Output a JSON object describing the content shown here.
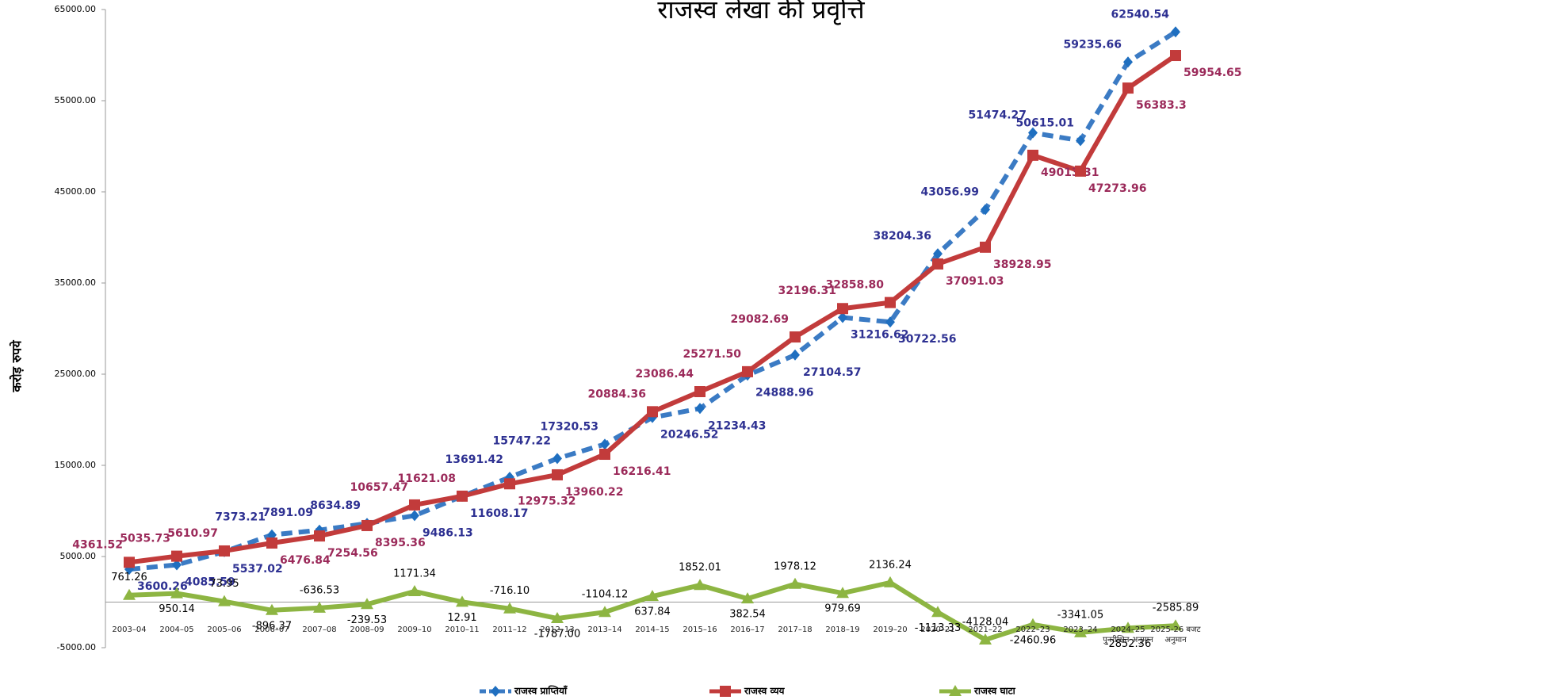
{
  "chart_data": {
    "type": "line",
    "title": "राजस्व लेखा की प्रवृत्ति",
    "y_label": "करोड़ रुपये",
    "categories": [
      "2003–04",
      "2004–05",
      "2005–06",
      "2006–07",
      "2007–08",
      "2008–09",
      "2009–10",
      "2010–11",
      "2011–12",
      "2012–13",
      "2013–14",
      "2014–15",
      "2015–16",
      "2016–17",
      "2017–18",
      "2018–19",
      "2019–20",
      "2020–21",
      "2021–22",
      "2022–23",
      "2023–24",
      "2024–25 पुनरीक्षित अनुमान",
      "2025-26 बजट अनुमान"
    ],
    "series": [
      {
        "name": "राजस्व प्राप्तियाँ",
        "color": "#3b7bc4",
        "marker_color": "#1f6fc0",
        "label_color": "#2e3192",
        "dash": true,
        "marker": "diamond",
        "values": [
          3600.26,
          4085.59,
          5537.02,
          7373.21,
          7891.09,
          8634.89,
          9486.13,
          11608.17,
          13691.42,
          15747.22,
          17320.53,
          20246.52,
          21234.43,
          24888.96,
          27104.57,
          31216.62,
          30722.56,
          38204.36,
          43056.99,
          51474.27,
          50615.01,
          59235.66,
          62540.54
        ],
        "value_labels": [
          "3600.26",
          "4085.59",
          "5537.02",
          "7373.21",
          "7891.09",
          "8634.89",
          "9486.13",
          "11608.17",
          "13691.42",
          "15747.22",
          "17320.53",
          "20246.52",
          "21234.43",
          "24888.96",
          "27104.57",
          "31216.62",
          "30722.56",
          "38204.36",
          "43056.99",
          "51474.27",
          "50615.01",
          "59235.66",
          "62540.54"
        ]
      },
      {
        "name": "राजस्व व्यय",
        "color": "#c23b3b",
        "marker_color": "#c23b3b",
        "label_color": "#9b2a5a",
        "dash": false,
        "marker": "square",
        "values": [
          4361.52,
          5035.73,
          5610.97,
          6476.84,
          7254.56,
          8395.36,
          10657.47,
          11621.08,
          12975.32,
          13960.22,
          16216.41,
          20884.36,
          23086.44,
          25271.5,
          29082.69,
          32196.31,
          32858.8,
          37091.03,
          38928.95,
          49013.31,
          47273.96,
          56383.3,
          59954.65
        ],
        "value_labels": [
          "4361.52",
          "5035.73",
          "5610.97",
          "6476.84",
          "7254.56",
          "8395.36",
          "10657.47",
          "11621.08",
          "12975.32",
          "13960.22",
          "16216.41",
          "20884.36",
          "23086.44",
          "25271.50",
          "29082.69",
          "32196.31",
          "32858.80",
          "37091.03",
          "38928.95",
          "49013.31",
          "47273.96",
          "56383.3",
          "59954.65"
        ]
      },
      {
        "name": "राजस्व घाटा",
        "color": "#8db542",
        "marker_color": "#8db542",
        "label_color": "#000000",
        "dash": false,
        "marker": "triangle",
        "values": [
          761.26,
          950.14,
          73.95,
          -896.37,
          -636.53,
          -239.53,
          1171.34,
          12.91,
          -716.1,
          -1787,
          -1104.12,
          637.84,
          1852.01,
          382.54,
          1978.12,
          979.69,
          2136.24,
          -1113.33,
          -4128.04,
          -2460.96,
          -3341.05,
          -2852.36,
          -2585.89
        ],
        "value_labels": [
          "761.26",
          "950.14",
          "73.95",
          "-896.37",
          "-636.53",
          "-239.53",
          "1171.34",
          "12.91",
          "-716.10",
          "-1787.00",
          "-1104.12",
          "637.84",
          "1852.01",
          "382.54",
          "1978.12",
          "979.69",
          "2136.24",
          "-1113.33",
          "-4128.04",
          "-2460.96",
          "-3341.05",
          "-2852.36",
          "-2585.89"
        ]
      }
    ],
    "ylim": [
      -5000,
      65000
    ],
    "yticks": [
      {
        "value": -5000,
        "label": "-5000.00"
      },
      {
        "value": 5000,
        "label": "5000.00"
      },
      {
        "value": 15000,
        "label": "15000.00"
      },
      {
        "value": 25000,
        "label": "25000.00"
      },
      {
        "value": 35000,
        "label": "35000.00"
      },
      {
        "value": 45000,
        "label": "45000.00"
      },
      {
        "value": 55000,
        "label": "55000.00"
      },
      {
        "value": 65000,
        "label": "65000.00"
      }
    ],
    "grid": false,
    "legend": "bottom"
  }
}
